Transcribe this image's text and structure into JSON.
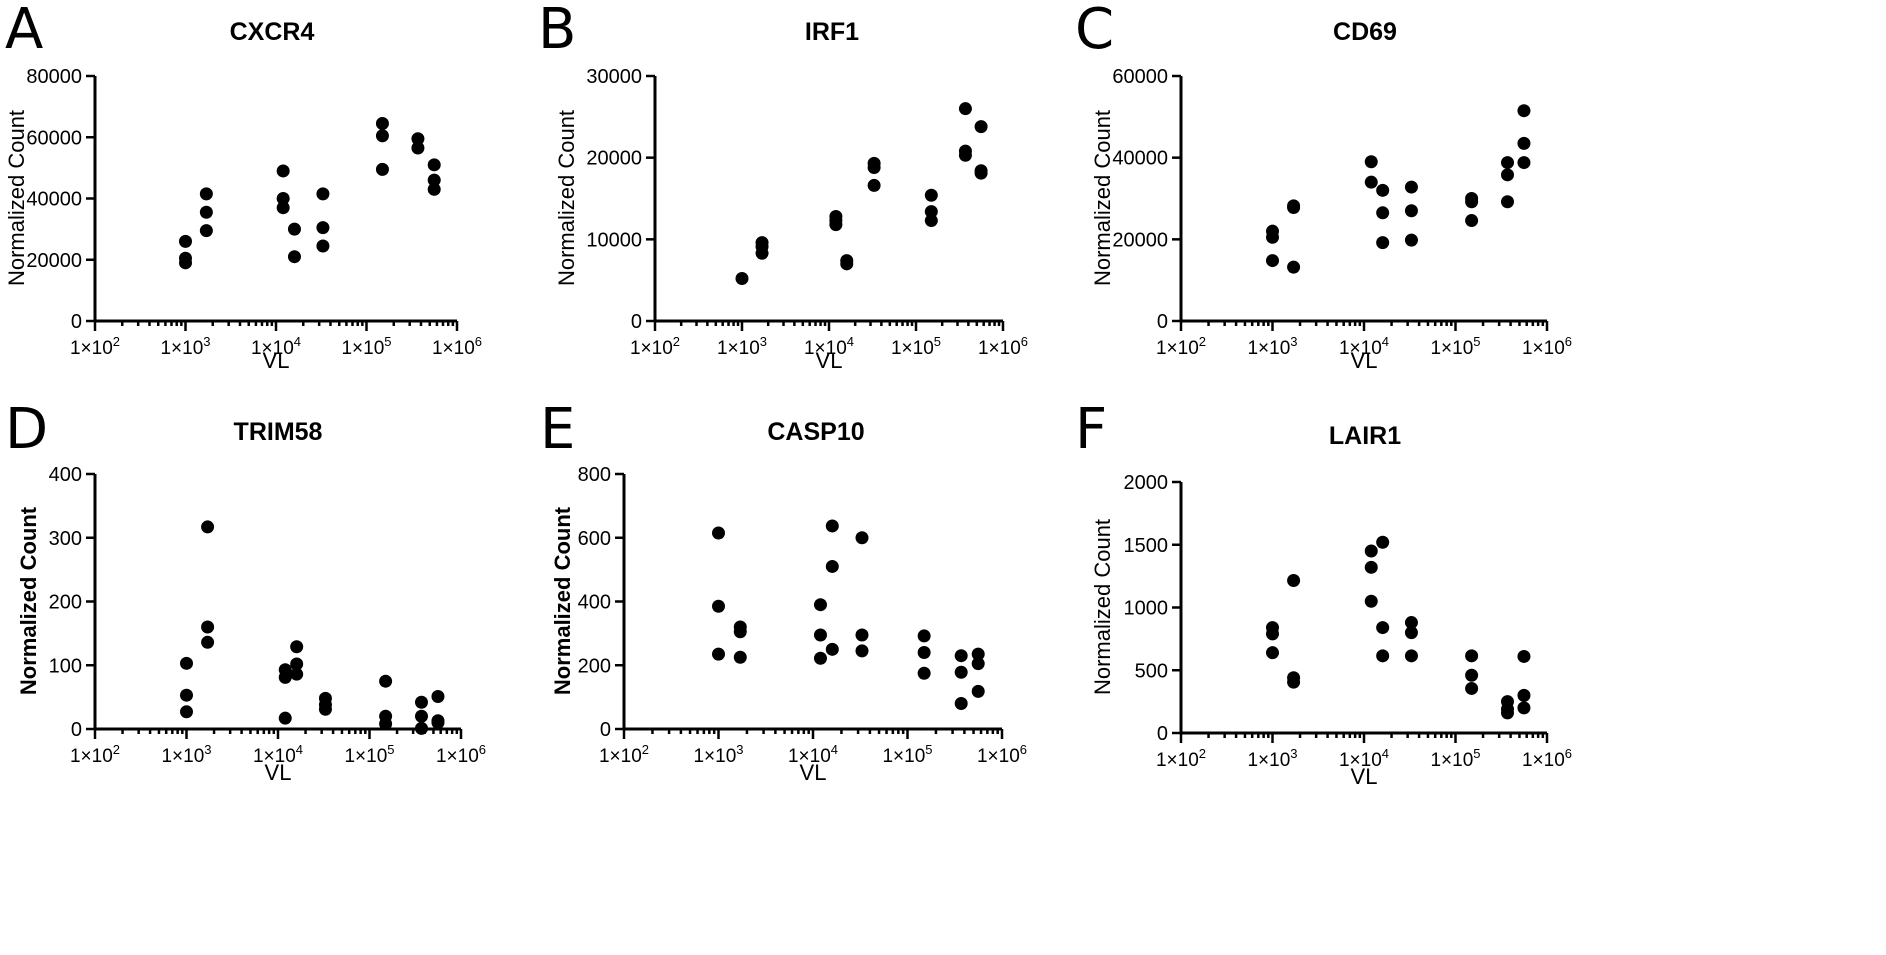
{
  "chart_data": [
    {
      "panel": "A",
      "type": "scatter",
      "title": "CXCR4",
      "xlabel": "VL",
      "ylabel": "Normalized Count",
      "ylabel_bold": false,
      "xscale": "log",
      "xlim": [
        100,
        1000000
      ],
      "ylim": [
        0,
        80000
      ],
      "yticks": [
        0,
        20000,
        40000,
        60000,
        80000
      ],
      "xticks": [
        {
          "base": "1×10",
          "exp": "2"
        },
        {
          "base": "1×10",
          "exp": "3"
        },
        {
          "base": "1×10",
          "exp": "4"
        },
        {
          "base": "1×10",
          "exp": "5"
        },
        {
          "base": "1×10",
          "exp": "6"
        }
      ],
      "points": [
        {
          "x": 1000,
          "y": 26000
        },
        {
          "x": 1000,
          "y": 20500
        },
        {
          "x": 1000,
          "y": 19000
        },
        {
          "x": 1700,
          "y": 41500
        },
        {
          "x": 1700,
          "y": 35500
        },
        {
          "x": 1700,
          "y": 29500
        },
        {
          "x": 12000,
          "y": 49000
        },
        {
          "x": 12000,
          "y": 40000
        },
        {
          "x": 12000,
          "y": 37000
        },
        {
          "x": 16000,
          "y": 30000
        },
        {
          "x": 16000,
          "y": 21000
        },
        {
          "x": 33000,
          "y": 41500
        },
        {
          "x": 33000,
          "y": 30500
        },
        {
          "x": 33000,
          "y": 24500
        },
        {
          "x": 150000,
          "y": 64500
        },
        {
          "x": 150000,
          "y": 60500
        },
        {
          "x": 150000,
          "y": 49500
        },
        {
          "x": 370000,
          "y": 59500
        },
        {
          "x": 370000,
          "y": 56500
        },
        {
          "x": 560000,
          "y": 51000
        },
        {
          "x": 560000,
          "y": 46000
        },
        {
          "x": 560000,
          "y": 43000
        }
      ]
    },
    {
      "panel": "B",
      "type": "scatter",
      "title": "IRF1",
      "xlabel": "VL",
      "ylabel": "Normalized Count",
      "ylabel_bold": false,
      "xscale": "log",
      "xlim": [
        100,
        1000000
      ],
      "ylim": [
        0,
        30000
      ],
      "yticks": [
        0,
        10000,
        20000,
        30000
      ],
      "xticks": [
        {
          "base": "1×10",
          "exp": "2"
        },
        {
          "base": "1×10",
          "exp": "3"
        },
        {
          "base": "1×10",
          "exp": "4"
        },
        {
          "base": "1×10",
          "exp": "5"
        },
        {
          "base": "1×10",
          "exp": "6"
        }
      ],
      "points": [
        {
          "x": 1000,
          "y": 5200
        },
        {
          "x": 1700,
          "y": 9600
        },
        {
          "x": 1700,
          "y": 9100
        },
        {
          "x": 1700,
          "y": 8300
        },
        {
          "x": 12000,
          "y": 12800
        },
        {
          "x": 12000,
          "y": 12300
        },
        {
          "x": 12000,
          "y": 11800
        },
        {
          "x": 16000,
          "y": 7400
        },
        {
          "x": 16000,
          "y": 7000
        },
        {
          "x": 33000,
          "y": 19300
        },
        {
          "x": 33000,
          "y": 18800
        },
        {
          "x": 33000,
          "y": 16600
        },
        {
          "x": 150000,
          "y": 15400
        },
        {
          "x": 150000,
          "y": 13400
        },
        {
          "x": 150000,
          "y": 12300
        },
        {
          "x": 370000,
          "y": 26000
        },
        {
          "x": 370000,
          "y": 20800
        },
        {
          "x": 370000,
          "y": 20300
        },
        {
          "x": 560000,
          "y": 23800
        },
        {
          "x": 560000,
          "y": 18400
        },
        {
          "x": 560000,
          "y": 18100
        }
      ]
    },
    {
      "panel": "C",
      "type": "scatter",
      "title": "CD69",
      "xlabel": "VL",
      "ylabel": "Normalized Count",
      "ylabel_bold": false,
      "xscale": "log",
      "xlim": [
        100,
        1000000
      ],
      "ylim": [
        0,
        60000
      ],
      "yticks": [
        0,
        20000,
        40000,
        60000
      ],
      "xticks": [
        {
          "base": "1×10",
          "exp": "2"
        },
        {
          "base": "1×10",
          "exp": "3"
        },
        {
          "base": "1×10",
          "exp": "4"
        },
        {
          "base": "1×10",
          "exp": "5"
        },
        {
          "base": "1×10",
          "exp": "6"
        }
      ],
      "points": [
        {
          "x": 1000,
          "y": 22000
        },
        {
          "x": 1000,
          "y": 20500
        },
        {
          "x": 1000,
          "y": 14800
        },
        {
          "x": 1700,
          "y": 28200
        },
        {
          "x": 1700,
          "y": 27800
        },
        {
          "x": 1700,
          "y": 13200
        },
        {
          "x": 12000,
          "y": 39000
        },
        {
          "x": 12000,
          "y": 34000
        },
        {
          "x": 16000,
          "y": 32000
        },
        {
          "x": 16000,
          "y": 26500
        },
        {
          "x": 16000,
          "y": 19200
        },
        {
          "x": 33000,
          "y": 32800
        },
        {
          "x": 33000,
          "y": 27000
        },
        {
          "x": 33000,
          "y": 19800
        },
        {
          "x": 150000,
          "y": 30000
        },
        {
          "x": 150000,
          "y": 29200
        },
        {
          "x": 150000,
          "y": 24600
        },
        {
          "x": 370000,
          "y": 38800
        },
        {
          "x": 370000,
          "y": 35800
        },
        {
          "x": 370000,
          "y": 29200
        },
        {
          "x": 560000,
          "y": 51500
        },
        {
          "x": 560000,
          "y": 43500
        },
        {
          "x": 560000,
          "y": 38800
        }
      ]
    },
    {
      "panel": "D",
      "type": "scatter",
      "title": "TRIM58",
      "xlabel": "VL",
      "ylabel": "Normalized Count",
      "ylabel_bold": true,
      "xscale": "log",
      "xlim": [
        100,
        1000000
      ],
      "ylim": [
        0,
        400
      ],
      "yticks": [
        0,
        100,
        200,
        300,
        400
      ],
      "xticks": [
        {
          "base": "1×10",
          "exp": "2"
        },
        {
          "base": "1×10",
          "exp": "3"
        },
        {
          "base": "1×10",
          "exp": "4"
        },
        {
          "base": "1×10",
          "exp": "5"
        },
        {
          "base": "1×10",
          "exp": "6"
        }
      ],
      "points": [
        {
          "x": 1000,
          "y": 103
        },
        {
          "x": 1000,
          "y": 53
        },
        {
          "x": 1000,
          "y": 27
        },
        {
          "x": 1700,
          "y": 317
        },
        {
          "x": 1700,
          "y": 160
        },
        {
          "x": 1700,
          "y": 136
        },
        {
          "x": 12000,
          "y": 93
        },
        {
          "x": 12000,
          "y": 81
        },
        {
          "x": 12000,
          "y": 17
        },
        {
          "x": 16000,
          "y": 129
        },
        {
          "x": 16000,
          "y": 102
        },
        {
          "x": 16000,
          "y": 86
        },
        {
          "x": 33000,
          "y": 48
        },
        {
          "x": 33000,
          "y": 38
        },
        {
          "x": 33000,
          "y": 31
        },
        {
          "x": 150000,
          "y": 75
        },
        {
          "x": 150000,
          "y": 20
        },
        {
          "x": 150000,
          "y": 8
        },
        {
          "x": 370000,
          "y": 42
        },
        {
          "x": 370000,
          "y": 20
        },
        {
          "x": 370000,
          "y": 1
        },
        {
          "x": 560000,
          "y": 51
        },
        {
          "x": 560000,
          "y": 13
        },
        {
          "x": 560000,
          "y": 10
        }
      ]
    },
    {
      "panel": "E",
      "type": "scatter",
      "title": "CASP10",
      "xlabel": "VL",
      "ylabel": "Normalized Count",
      "ylabel_bold": true,
      "xscale": "log",
      "xlim": [
        100,
        1000000
      ],
      "ylim": [
        0,
        800
      ],
      "yticks": [
        0,
        200,
        400,
        600,
        800
      ],
      "xticks": [
        {
          "base": "1×10",
          "exp": "2"
        },
        {
          "base": "1×10",
          "exp": "3"
        },
        {
          "base": "1×10",
          "exp": "4"
        },
        {
          "base": "1×10",
          "exp": "5"
        },
        {
          "base": "1×10",
          "exp": "6"
        }
      ],
      "points": [
        {
          "x": 1000,
          "y": 615
        },
        {
          "x": 1000,
          "y": 385
        },
        {
          "x": 1000,
          "y": 235
        },
        {
          "x": 1700,
          "y": 320
        },
        {
          "x": 1700,
          "y": 305
        },
        {
          "x": 1700,
          "y": 225
        },
        {
          "x": 12000,
          "y": 390
        },
        {
          "x": 12000,
          "y": 295
        },
        {
          "x": 12000,
          "y": 222
        },
        {
          "x": 16000,
          "y": 637
        },
        {
          "x": 16000,
          "y": 510
        },
        {
          "x": 16000,
          "y": 250
        },
        {
          "x": 33000,
          "y": 600
        },
        {
          "x": 33000,
          "y": 295
        },
        {
          "x": 33000,
          "y": 245
        },
        {
          "x": 150000,
          "y": 292
        },
        {
          "x": 150000,
          "y": 240
        },
        {
          "x": 150000,
          "y": 175
        },
        {
          "x": 370000,
          "y": 230
        },
        {
          "x": 370000,
          "y": 178
        },
        {
          "x": 370000,
          "y": 80
        },
        {
          "x": 560000,
          "y": 235
        },
        {
          "x": 560000,
          "y": 205
        },
        {
          "x": 560000,
          "y": 118
        }
      ]
    },
    {
      "panel": "F",
      "type": "scatter",
      "title": "LAIR1",
      "xlabel": "VL",
      "ylabel": "Normalized Count",
      "ylabel_bold": false,
      "xscale": "log",
      "xlim": [
        100,
        1000000
      ],
      "ylim": [
        0,
        2000
      ],
      "yticks": [
        0,
        500,
        1000,
        1500,
        2000
      ],
      "xticks": [
        {
          "base": "1×10",
          "exp": "2"
        },
        {
          "base": "1×10",
          "exp": "3"
        },
        {
          "base": "1×10",
          "exp": "4"
        },
        {
          "base": "1×10",
          "exp": "5"
        },
        {
          "base": "1×10",
          "exp": "6"
        }
      ],
      "points": [
        {
          "x": 1000,
          "y": 840
        },
        {
          "x": 1000,
          "y": 790
        },
        {
          "x": 1000,
          "y": 640
        },
        {
          "x": 1700,
          "y": 1215
        },
        {
          "x": 1700,
          "y": 440
        },
        {
          "x": 1700,
          "y": 405
        },
        {
          "x": 12000,
          "y": 1450
        },
        {
          "x": 12000,
          "y": 1320
        },
        {
          "x": 12000,
          "y": 1050
        },
        {
          "x": 16000,
          "y": 1520
        },
        {
          "x": 16000,
          "y": 840
        },
        {
          "x": 16000,
          "y": 615
        },
        {
          "x": 33000,
          "y": 880
        },
        {
          "x": 33000,
          "y": 800
        },
        {
          "x": 33000,
          "y": 615
        },
        {
          "x": 150000,
          "y": 615
        },
        {
          "x": 150000,
          "y": 460
        },
        {
          "x": 150000,
          "y": 355
        },
        {
          "x": 370000,
          "y": 250
        },
        {
          "x": 370000,
          "y": 190
        },
        {
          "x": 370000,
          "y": 160
        },
        {
          "x": 560000,
          "y": 610
        },
        {
          "x": 560000,
          "y": 300
        },
        {
          "x": 560000,
          "y": 200
        }
      ]
    }
  ]
}
